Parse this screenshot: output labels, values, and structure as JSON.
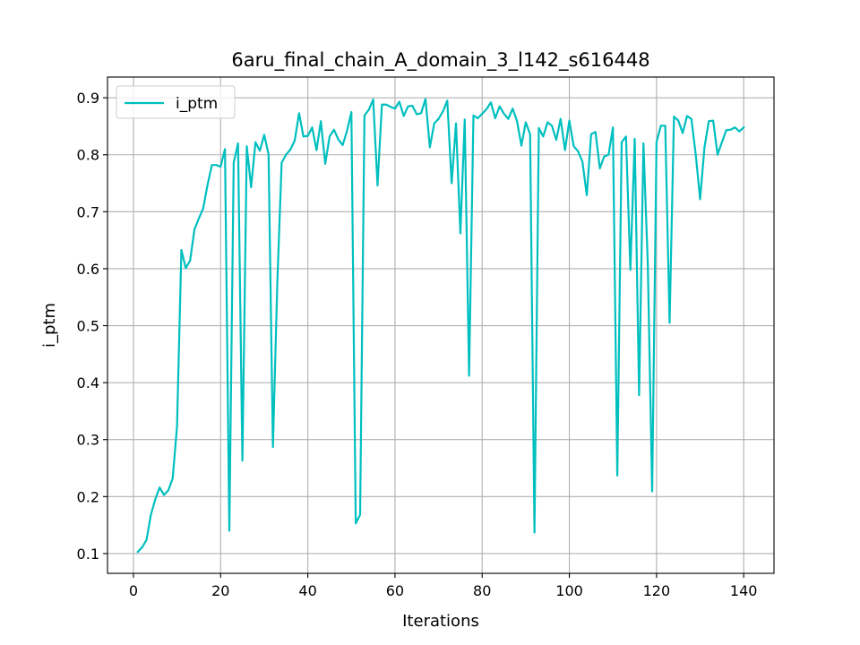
{
  "chart_data": {
    "type": "line",
    "title": "6aru_final_chain_A_domain_3_l142_s616448",
    "xlabel": "Iterations",
    "ylabel": "i_ptm",
    "xlim": [
      -5.95,
      146.95
    ],
    "ylim": [
      0.0653,
      0.9364
    ],
    "xticks": [
      0,
      20,
      40,
      60,
      80,
      100,
      120,
      140
    ],
    "yticks": [
      0.1,
      0.2,
      0.3,
      0.4,
      0.5,
      0.6,
      0.7,
      0.8,
      0.9
    ],
    "ytick_labels": [
      "0.1",
      "0.2",
      "0.3",
      "0.4",
      "0.5",
      "0.6",
      "0.7",
      "0.8",
      "0.9"
    ],
    "grid": true,
    "legend_position": "top-left",
    "series": [
      {
        "name": "i_ptm",
        "color": "#00bfbf",
        "x": [
          1,
          2,
          3,
          4,
          5,
          6,
          7,
          8,
          9,
          10,
          11,
          12,
          13,
          14,
          15,
          16,
          17,
          18,
          19,
          20,
          21,
          22,
          23,
          24,
          25,
          26,
          27,
          28,
          29,
          30,
          31,
          32,
          33,
          34,
          35,
          36,
          37,
          38,
          39,
          40,
          41,
          42,
          43,
          44,
          45,
          46,
          47,
          48,
          49,
          50,
          51,
          52,
          53,
          54,
          55,
          56,
          57,
          58,
          59,
          60,
          61,
          62,
          63,
          64,
          65,
          66,
          67,
          68,
          69,
          70,
          71,
          72,
          73,
          74,
          75,
          76,
          77,
          78,
          79,
          80,
          81,
          82,
          83,
          84,
          85,
          86,
          87,
          88,
          89,
          90,
          91,
          92,
          93,
          94,
          95,
          96,
          97,
          98,
          99,
          100,
          101,
          102,
          103,
          104,
          105,
          106,
          107,
          108,
          109,
          110,
          111,
          112,
          113,
          114,
          115,
          116,
          117,
          118,
          119,
          120,
          121,
          122,
          123,
          124,
          125,
          126,
          127,
          128,
          129,
          130,
          131,
          132,
          133,
          134,
          135,
          136,
          137,
          138,
          139,
          140
        ],
        "y": [
          0.103,
          0.111,
          0.124,
          0.168,
          0.195,
          0.216,
          0.203,
          0.211,
          0.232,
          0.323,
          0.633,
          0.601,
          0.614,
          0.669,
          0.688,
          0.706,
          0.747,
          0.782,
          0.782,
          0.779,
          0.81,
          0.14,
          0.786,
          0.82,
          0.263,
          0.815,
          0.743,
          0.822,
          0.807,
          0.835,
          0.801,
          0.287,
          0.574,
          0.786,
          0.8,
          0.809,
          0.825,
          0.873,
          0.832,
          0.833,
          0.848,
          0.808,
          0.859,
          0.784,
          0.832,
          0.844,
          0.827,
          0.817,
          0.842,
          0.875,
          0.153,
          0.168,
          0.869,
          0.879,
          0.897,
          0.746,
          0.888,
          0.888,
          0.884,
          0.881,
          0.893,
          0.868,
          0.885,
          0.886,
          0.871,
          0.873,
          0.898,
          0.813,
          0.855,
          0.863,
          0.876,
          0.895,
          0.75,
          0.855,
          0.662,
          0.862,
          0.412,
          0.869,
          0.864,
          0.872,
          0.88,
          0.892,
          0.864,
          0.885,
          0.872,
          0.863,
          0.881,
          0.859,
          0.816,
          0.857,
          0.836,
          0.137,
          0.847,
          0.832,
          0.857,
          0.851,
          0.826,
          0.863,
          0.808,
          0.86,
          0.815,
          0.806,
          0.788,
          0.729,
          0.836,
          0.84,
          0.776,
          0.797,
          0.8,
          0.848,
          0.237,
          0.822,
          0.832,
          0.598,
          0.828,
          0.378,
          0.82,
          0.608,
          0.209,
          0.822,
          0.851,
          0.851,
          0.505,
          0.867,
          0.86,
          0.838,
          0.868,
          0.863,
          0.8,
          0.722,
          0.813,
          0.859,
          0.86,
          0.8,
          0.822,
          0.843,
          0.844,
          0.848,
          0.841,
          0.848
        ]
      }
    ]
  }
}
